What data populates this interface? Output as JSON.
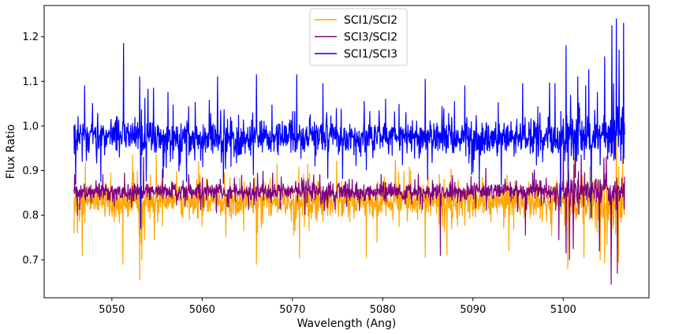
{
  "chart_data": {
    "type": "line",
    "title": "",
    "xlabel": "Wavelength (Ang)",
    "ylabel": "Flux Ratio",
    "xlim": [
      5042.5,
      5109.5
    ],
    "ylim": [
      0.615,
      1.27
    ],
    "xticks": [
      5050,
      5060,
      5070,
      5080,
      5090,
      5100
    ],
    "yticks": [
      0.7,
      0.8,
      0.9,
      1.0,
      1.1,
      1.2
    ],
    "grid": false,
    "legend_position": "upper center",
    "x_range": [
      5045.8,
      5106.8
    ],
    "series": [
      {
        "name": "SCI1/SCI2",
        "color": "#ffa500",
        "baseline": 0.83,
        "noise": 0.022,
        "dips": [
          [
            5046.2,
            0.76
          ],
          [
            5046.7,
            0.71
          ],
          [
            5051.2,
            0.69
          ],
          [
            5053.1,
            0.655
          ],
          [
            5053.3,
            0.7
          ],
          [
            5054.7,
            0.745
          ],
          [
            5066.0,
            0.69
          ],
          [
            5070.8,
            0.705
          ],
          [
            5078.2,
            0.705
          ],
          [
            5084.7,
            0.705
          ],
          [
            5087.1,
            0.71
          ],
          [
            5094.0,
            0.72
          ],
          [
            5100.5,
            0.68
          ],
          [
            5102.3,
            0.705
          ],
          [
            5104.1,
            0.7
          ],
          [
            5105.3,
            0.68
          ],
          [
            5106.1,
            0.695
          ]
        ],
        "spikes": [
          [
            5052.3,
            0.935
          ],
          [
            5054.9,
            0.935
          ],
          [
            5059.6,
            0.92
          ],
          [
            5068.3,
            0.915
          ],
          [
            5071.7,
            0.915
          ],
          [
            5081.4,
            0.92
          ]
        ]
      },
      {
        "name": "SCI3/SCI2",
        "color": "#800080",
        "baseline": 0.853,
        "noise": 0.013,
        "dips": [
          [
            5046.2,
            0.8
          ],
          [
            5053.2,
            0.775
          ],
          [
            5086.4,
            0.71
          ],
          [
            5095.8,
            0.755
          ],
          [
            5099.5,
            0.745
          ],
          [
            5100.3,
            0.715
          ],
          [
            5100.7,
            0.7
          ],
          [
            5101.1,
            0.725
          ],
          [
            5104.0,
            0.72
          ],
          [
            5105.3,
            0.645
          ],
          [
            5106.0,
            0.67
          ]
        ],
        "spikes": [
          [
            5053.5,
            0.93
          ],
          [
            5100.0,
            0.955
          ],
          [
            5102.0,
            0.935
          ]
        ]
      },
      {
        "name": "SCI1/SCI3",
        "color": "#0000ff",
        "baseline": 0.975,
        "noise": 0.025,
        "dips": [
          [
            5053.2,
            0.77
          ],
          [
            5046.0,
            0.87
          ],
          [
            5099.7,
            0.82
          ],
          [
            5103.1,
            0.795
          ]
        ],
        "spikes": [
          [
            5047.0,
            1.09
          ],
          [
            5051.3,
            1.185
          ],
          [
            5053.1,
            1.11
          ],
          [
            5054.6,
            1.085
          ],
          [
            5056.2,
            1.075
          ],
          [
            5061.7,
            1.11
          ],
          [
            5066.0,
            1.115
          ],
          [
            5070.5,
            1.115
          ],
          [
            5073.4,
            1.095
          ],
          [
            5084.7,
            1.105
          ],
          [
            5089.1,
            1.09
          ],
          [
            5095.5,
            1.095
          ],
          [
            5099.1,
            1.095
          ],
          [
            5100.3,
            1.18
          ],
          [
            5101.6,
            1.11
          ],
          [
            5102.5,
            1.09
          ],
          [
            5103.8,
            1.075
          ],
          [
            5104.6,
            1.155
          ],
          [
            5105.4,
            1.225
          ],
          [
            5105.9,
            1.24
          ],
          [
            5106.2,
            1.17
          ],
          [
            5106.7,
            1.23
          ]
        ]
      }
    ]
  }
}
